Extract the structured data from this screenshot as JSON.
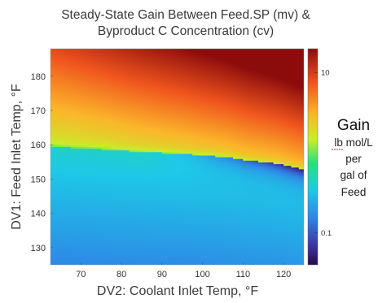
{
  "chart_data": {
    "type": "heatmap",
    "title_lines": [
      "Steady-State Gain Between Feed.SP (mv) &",
      "Byproduct C Concentration (cv)"
    ],
    "xlabel": "DV2: Coolant Inlet Temp, °F",
    "ylabel": "DV1: Feed Inlet Temp, °F",
    "x_ticks": [
      70,
      80,
      90,
      100,
      110,
      120
    ],
    "y_ticks": [
      130,
      140,
      150,
      160,
      170,
      180
    ],
    "xlim": [
      62.5,
      125
    ],
    "ylim": [
      125,
      188
    ],
    "colorbar": {
      "scale": "log",
      "ticks": [
        {
          "value": 10,
          "label": "10"
        },
        {
          "value": 0.1,
          "label": "0.1"
        }
      ],
      "range": [
        0.04,
        20
      ],
      "colormap": "jet",
      "title": "Gain",
      "unit_lines": [
        "lb mol/L",
        "per",
        "gal of",
        "Feed"
      ]
    },
    "boundary": {
      "description_x": [
        62.5,
        72,
        85,
        95,
        100,
        106,
        111,
        116,
        119,
        123,
        125
      ],
      "description_y": [
        159.5,
        159,
        158,
        157.5,
        157,
        156.5,
        155.5,
        155,
        154.5,
        153.5,
        153
      ]
    }
  }
}
